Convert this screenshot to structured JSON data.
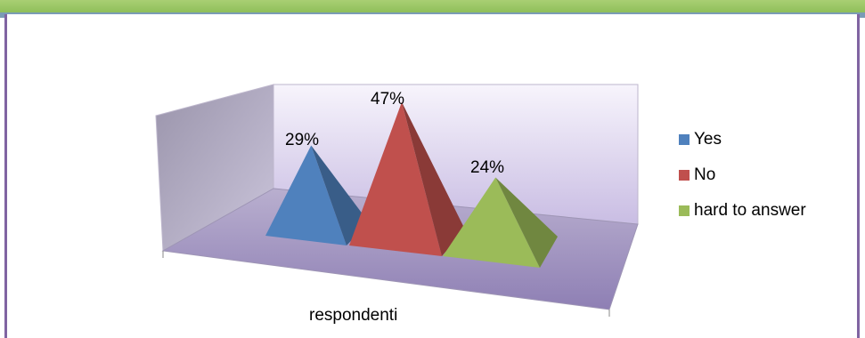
{
  "colors": {
    "yes": "#4f81bd",
    "no": "#c0504d",
    "hard": "#9bbb59",
    "wall": "#b7aecd",
    "floor": "#a597c0"
  },
  "chart_data": {
    "type": "bar",
    "style": "3d-pyramid",
    "categories": [
      "respondenti"
    ],
    "series": [
      {
        "name": "Yes",
        "values": [
          29
        ],
        "label": "29%"
      },
      {
        "name": "No",
        "values": [
          47
        ],
        "label": "47%"
      },
      {
        "name": "hard to answer",
        "values": [
          24
        ],
        "label": "24%"
      }
    ],
    "xlabel": "respondenti",
    "legend": "right",
    "unit": "%"
  }
}
